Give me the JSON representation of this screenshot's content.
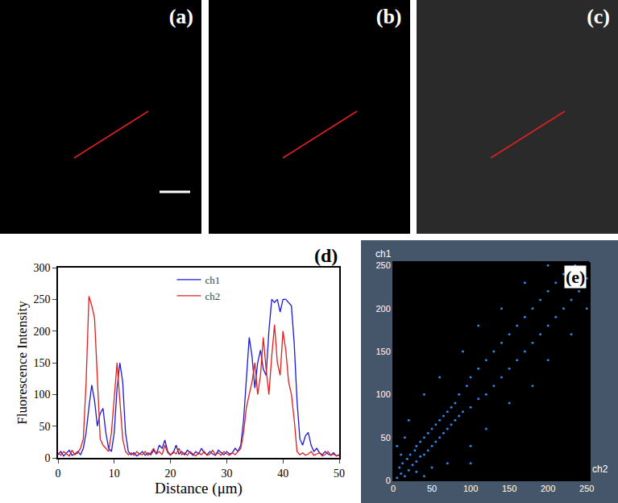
{
  "images": [
    {
      "label": "(a)"
    },
    {
      "label": "(b)"
    },
    {
      "label": "(c)"
    }
  ],
  "chart_data": [
    {
      "type": "line",
      "label": "(d)",
      "x_label": "Distance (μm)",
      "y_label": "Fluorescence Intensity",
      "x": [
        0,
        0.5,
        1,
        1.5,
        2,
        2.5,
        3,
        3.5,
        4,
        4.5,
        5,
        5.5,
        6,
        6.5,
        7,
        7.5,
        8,
        8.5,
        9,
        9.5,
        10,
        10.5,
        11,
        11.5,
        12,
        12.5,
        13,
        13.5,
        14,
        14.5,
        15,
        15.5,
        16,
        16.5,
        17,
        17.5,
        18,
        18.5,
        19,
        19.5,
        20,
        20.5,
        21,
        21.5,
        22,
        22.5,
        23,
        23.5,
        24,
        24.5,
        25,
        25.5,
        26,
        26.5,
        27,
        27.5,
        28,
        28.5,
        29,
        29.5,
        30,
        30.5,
        31,
        31.5,
        32,
        32.5,
        33,
        33.5,
        34,
        34.5,
        35,
        35.5,
        36,
        36.5,
        37,
        37.5,
        38,
        38.5,
        39,
        39.5,
        40,
        40.5,
        41,
        41.5,
        42,
        42.5,
        43,
        43.5,
        44,
        44.5,
        45,
        45.5,
        46,
        46.5,
        47,
        47.5,
        48,
        48.5,
        49,
        49.5,
        50
      ],
      "series": [
        {
          "name": "ch1",
          "color": "#1a1ad6",
          "values": [
            5,
            10,
            3,
            8,
            12,
            4,
            6,
            10,
            5,
            15,
            40,
            80,
            115,
            90,
            50,
            70,
            78,
            40,
            15,
            10,
            40,
            110,
            150,
            120,
            40,
            10,
            5,
            8,
            3,
            6,
            10,
            4,
            8,
            5,
            12,
            6,
            20,
            15,
            28,
            10,
            5,
            8,
            20,
            6,
            10,
            5,
            12,
            8,
            4,
            10,
            6,
            15,
            8,
            5,
            10,
            6,
            4,
            12,
            8,
            5,
            10,
            6,
            8,
            15,
            10,
            20,
            60,
            130,
            190,
            160,
            110,
            150,
            170,
            140,
            130,
            200,
            250,
            245,
            250,
            230,
            250,
            250,
            245,
            240,
            180,
            90,
            30,
            20,
            35,
            40,
            20,
            10,
            15,
            8,
            5,
            10,
            6,
            4,
            8,
            3,
            5
          ]
        },
        {
          "name": "ch2",
          "color": "#e01e1e",
          "values": [
            8,
            4,
            10,
            6,
            3,
            12,
            5,
            8,
            15,
            30,
            120,
            255,
            240,
            220,
            120,
            30,
            20,
            15,
            10,
            40,
            100,
            150,
            90,
            30,
            10,
            5,
            8,
            4,
            10,
            6,
            5,
            10,
            4,
            8,
            15,
            6,
            10,
            5,
            20,
            8,
            4,
            10,
            6,
            15,
            5,
            8,
            4,
            10,
            6,
            3,
            8,
            5,
            10,
            4,
            6,
            12,
            5,
            8,
            4,
            10,
            6,
            4,
            8,
            5,
            10,
            15,
            40,
            80,
            100,
            120,
            150,
            100,
            130,
            190,
            140,
            100,
            160,
            210,
            150,
            130,
            200,
            170,
            120,
            100,
            60,
            10,
            5,
            8,
            4,
            6,
            10,
            4,
            6,
            8,
            3,
            5,
            10,
            4,
            6,
            3,
            4
          ]
        }
      ],
      "xlim": [
        0,
        50
      ],
      "xticks": [
        0,
        10,
        20,
        30,
        40,
        50
      ],
      "ylim": [
        0,
        300
      ],
      "yticks": [
        0,
        50,
        100,
        150,
        200,
        250,
        300
      ],
      "legend": "upper center",
      "grid": false
    },
    {
      "type": "scatter",
      "label": "(e)",
      "x_label": "ch2",
      "y_label": "ch1",
      "x": [
        5,
        10,
        15,
        8,
        20,
        12,
        25,
        18,
        30,
        22,
        35,
        28,
        40,
        30,
        45,
        35,
        50,
        40,
        55,
        45,
        60,
        50,
        65,
        55,
        70,
        60,
        75,
        65,
        80,
        70,
        85,
        75,
        90,
        80,
        100,
        85,
        110,
        95,
        120,
        100,
        130,
        110,
        140,
        120,
        150,
        130,
        160,
        140,
        170,
        150,
        180,
        160,
        190,
        170,
        200,
        180,
        210,
        190,
        220,
        200,
        230,
        210,
        240,
        220,
        250,
        235,
        100,
        40,
        120,
        60,
        150,
        90,
        180,
        110,
        200,
        140,
        230,
        170,
        250,
        200,
        5,
        40,
        70,
        20,
        100,
        255,
        30,
        10,
        50,
        15
      ],
      "y": [
        3,
        8,
        5,
        15,
        12,
        20,
        18,
        25,
        22,
        30,
        28,
        35,
        30,
        40,
        35,
        45,
        40,
        50,
        45,
        55,
        50,
        60,
        55,
        65,
        60,
        70,
        65,
        75,
        70,
        80,
        75,
        85,
        80,
        90,
        85,
        100,
        95,
        110,
        100,
        120,
        110,
        130,
        120,
        140,
        130,
        150,
        140,
        160,
        150,
        170,
        160,
        180,
        170,
        190,
        180,
        200,
        190,
        210,
        200,
        220,
        210,
        230,
        220,
        240,
        235,
        250,
        40,
        100,
        60,
        120,
        90,
        150,
        110,
        180,
        140,
        200,
        170,
        230,
        200,
        250,
        40,
        5,
        20,
        70,
        20,
        255,
        10,
        30,
        15,
        50
      ],
      "color": "#2f86e8",
      "xlim": [
        0,
        255
      ],
      "xticks": [
        0,
        50,
        100,
        150,
        200,
        250
      ],
      "ylim": [
        0,
        255
      ],
      "yticks": [
        0,
        50,
        100,
        150,
        200,
        250
      ],
      "grid": false
    }
  ]
}
